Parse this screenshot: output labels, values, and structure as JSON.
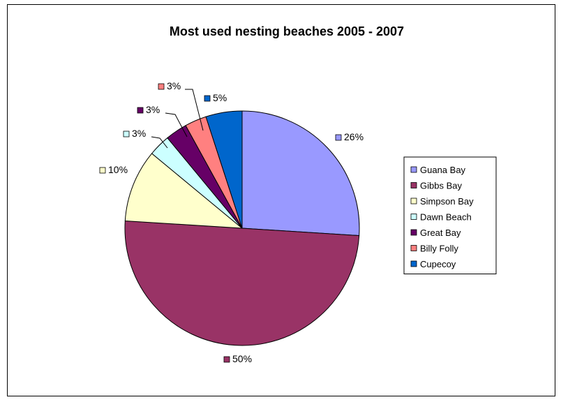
{
  "chart_data": {
    "type": "pie",
    "title": "Most used nesting beaches 2005 - 2007",
    "slices": [
      {
        "name": "Guana Bay",
        "value": 26,
        "label": "26%",
        "color": "#9999ff"
      },
      {
        "name": "Gibbs Bay",
        "value": 50,
        "label": "50%",
        "color": "#993366"
      },
      {
        "name": "Simpson Bay",
        "value": 10,
        "label": "10%",
        "color": "#ffffcc"
      },
      {
        "name": "Dawn Beach",
        "value": 3,
        "label": "3%",
        "color": "#ccffff"
      },
      {
        "name": "Great Bay",
        "value": 3,
        "label": "3%",
        "color": "#660066"
      },
      {
        "name": "Billy Folly",
        "value": 3,
        "label": "3%",
        "color": "#ff8080"
      },
      {
        "name": "Cupecoy",
        "value": 5,
        "label": "5%",
        "color": "#0066cc"
      }
    ],
    "legend_position": "right"
  }
}
